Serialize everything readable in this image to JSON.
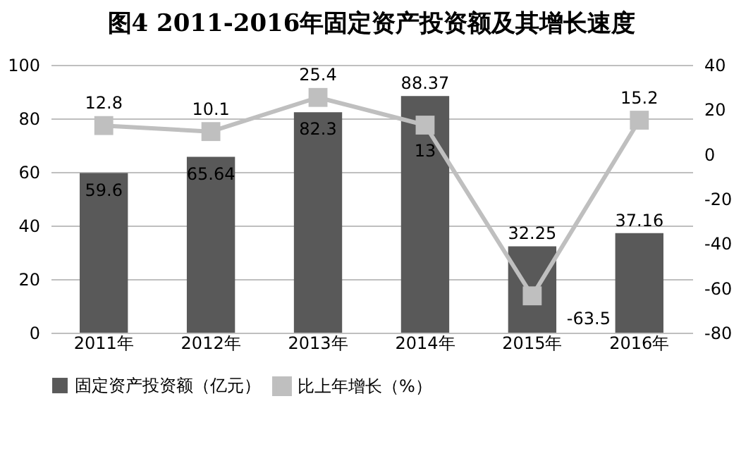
{
  "chart_data": {
    "type": "bar",
    "title": "图4  2011-2016年固定资产投资额及其增长速度",
    "categories": [
      "2011年",
      "2012年",
      "2013年",
      "2014年",
      "2015年",
      "2016年"
    ],
    "series": [
      {
        "name": "固定资产投资额（亿元）",
        "color": "#595959",
        "values": [
          59.6,
          65.64,
          82.3,
          88.37,
          32.25,
          37.16
        ]
      },
      {
        "name": "比上年增长（%）",
        "type": "line",
        "axis": "y2",
        "color": "#bfbfbf",
        "marker": "square",
        "values": [
          12.8,
          10.1,
          25.4,
          13,
          -63.5,
          15.2
        ]
      }
    ],
    "ylim": [
      0,
      100
    ],
    "yticks": [
      0,
      20,
      40,
      60,
      80,
      100
    ],
    "y2lim": [
      -80,
      40
    ],
    "y2ticks": [
      -80,
      -60,
      -40,
      -20,
      0,
      20,
      40
    ],
    "data_labels": true,
    "grid": "y",
    "legend": "bottom"
  }
}
